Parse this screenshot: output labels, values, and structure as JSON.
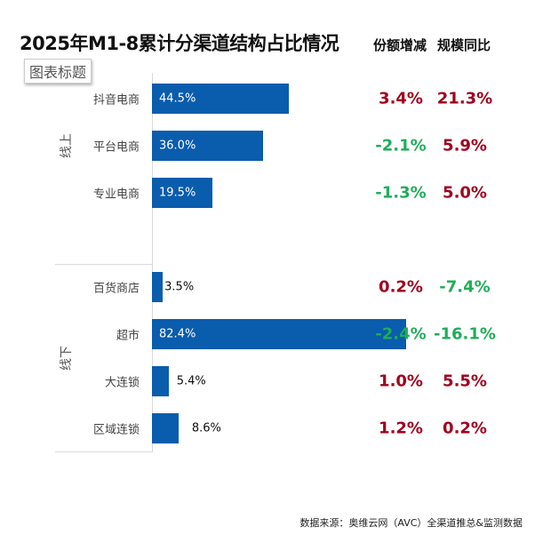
{
  "chart_data": {
    "type": "bar",
    "orientation": "horizontal",
    "title": "2025年M1-8累计分渠道结构占比情况",
    "placeholder_title": "图表标题",
    "column_headers": [
      "份额增减",
      "规模同比"
    ],
    "groups": [
      {
        "name": "线上",
        "categories": [
          "抖音电商",
          "平台电商",
          "专业电商"
        ],
        "values": [
          44.5,
          36.0,
          19.5
        ],
        "labels": [
          "44.5%",
          "36.0%",
          "19.5%"
        ],
        "share_change": [
          "3.4%",
          "-2.1%",
          "-1.3%"
        ],
        "yoy": [
          "21.3%",
          "5.9%",
          "5.0%"
        ]
      },
      {
        "name": "线下",
        "categories": [
          "百货商店",
          "超市",
          "大连锁",
          "区域连锁"
        ],
        "values": [
          3.5,
          82.4,
          5.4,
          8.6
        ],
        "labels": [
          "3.5%",
          "82.4%",
          "5.4%",
          "8.6%"
        ],
        "share_change": [
          "0.2%",
          "-2.4%",
          "1.0%",
          "1.2%"
        ],
        "yoy": [
          "-7.4%",
          "-16.1%",
          "5.5%",
          "0.2%"
        ]
      }
    ],
    "xlim": [
      0,
      100
    ],
    "bar_color": "#0a5cad",
    "positive_color": "#a0001e",
    "negative_color": "#1fae58",
    "source": "数据来源：奥维云网（AVC）全渠道推总&监测数据"
  }
}
